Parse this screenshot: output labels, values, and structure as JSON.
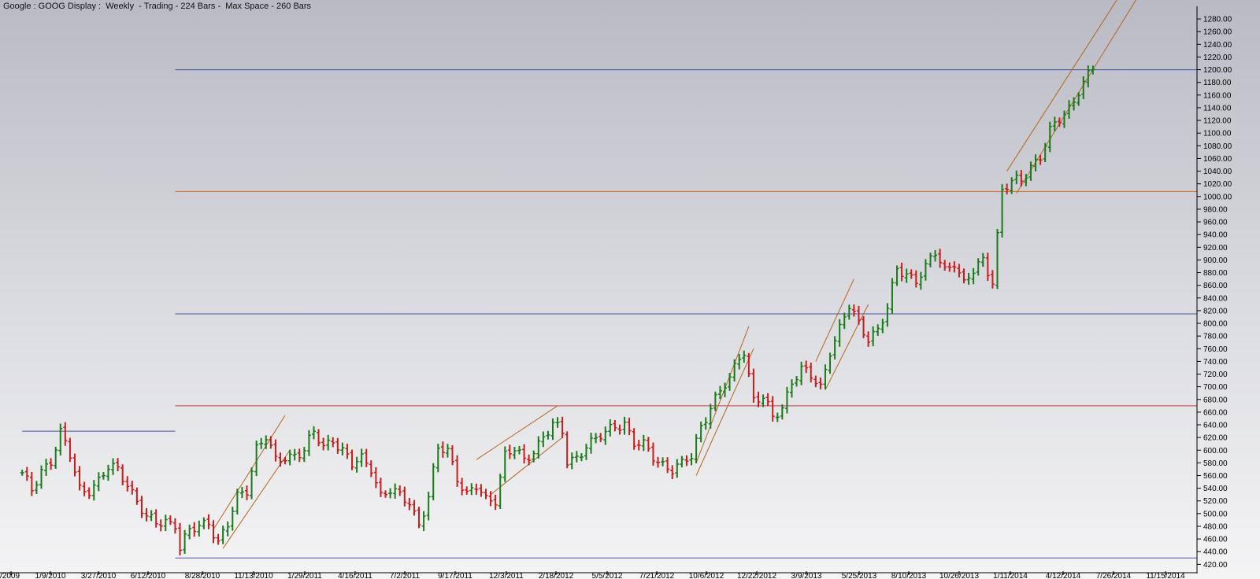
{
  "title": "Google : GOOG Display :  Weekly  - Trading - 224 Bars -  Max Space - 260 Bars",
  "colors": {
    "up": "#1a7a1a",
    "down": "#cc1a1a",
    "hline_blue": "#4a52a8",
    "hline_orange": "#d96a1e",
    "hline_red": "#c23c3c",
    "trend": "#b5651d",
    "axis": "#000000"
  },
  "chart_data": {
    "type": "ohlc",
    "interval": "weekly",
    "ylim": [
      413,
      1295
    ],
    "y_ticks": [
      "420.00",
      "440.00",
      "460.00",
      "480.00",
      "500.00",
      "520.00",
      "540.00",
      "560.00",
      "580.00",
      "600.00",
      "620.00",
      "640.00",
      "660.00",
      "680.00",
      "700.00",
      "720.00",
      "740.00",
      "760.00",
      "780.00",
      "800.00",
      "820.00",
      "840.00",
      "860.00",
      "880.00",
      "900.00",
      "920.00",
      "940.00",
      "960.00",
      "980.00",
      "1000.00",
      "1020.00",
      "1040.00",
      "1060.00",
      "1080.00",
      "1100.00",
      "1120.00",
      "1140.00",
      "1160.00",
      "1180.00",
      "1200.00",
      "1220.00",
      "1240.00",
      "1260.00",
      "1280.00"
    ],
    "x_ticks": [
      "/2009",
      "1/9/2010",
      "3/27/2010",
      "6/12/2010",
      "8/28/2010",
      "11/13/2010",
      "1/29/2011",
      "4/16/2011",
      "7/2/2011",
      "9/17/2011",
      "12/3/2011",
      "2/18/2012",
      "5/5/2012",
      "7/21/2012",
      "10/6/2012",
      "12/22/2012",
      "3/9/2013",
      "5/25/2013",
      "8/10/2013",
      "10/26/2013",
      "1/11/2014",
      "4/12/2014",
      "7/26/2014",
      "11/15/2014"
    ],
    "close_path": [
      [
        "2009-11-14",
        560
      ],
      [
        "2009-11-28",
        535
      ],
      [
        "2009-12-12",
        570
      ],
      [
        "2009-12-26",
        585
      ],
      [
        "2010-01-09",
        625
      ],
      [
        "2010-01-23",
        590
      ],
      [
        "2010-02-06",
        540
      ],
      [
        "2010-02-20",
        540
      ],
      [
        "2010-03-06",
        550
      ],
      [
        "2010-03-20",
        570
      ],
      [
        "2010-04-03",
        570
      ],
      [
        "2010-04-17",
        550
      ],
      [
        "2010-05-01",
        520
      ],
      [
        "2010-05-15",
        490
      ],
      [
        "2010-05-29",
        485
      ],
      [
        "2010-06-12",
        490
      ],
      [
        "2010-06-26",
        485
      ],
      [
        "2010-07-03",
        445
      ],
      [
        "2010-07-17",
        470
      ],
      [
        "2010-07-31",
        480
      ],
      [
        "2010-08-14",
        490
      ],
      [
        "2010-08-28",
        455
      ],
      [
        "2010-09-11",
        480
      ],
      [
        "2010-09-25",
        525
      ],
      [
        "2010-10-09",
        540
      ],
      [
        "2010-10-23",
        605
      ],
      [
        "2010-11-06",
        620
      ],
      [
        "2010-11-20",
        580
      ],
      [
        "2010-12-04",
        590
      ],
      [
        "2010-12-18",
        595
      ],
      [
        "2011-01-01",
        600
      ],
      [
        "2011-01-15",
        625
      ],
      [
        "2011-01-29",
        605
      ],
      [
        "2011-02-12",
        620
      ],
      [
        "2011-02-26",
        600
      ],
      [
        "2011-03-12",
        575
      ],
      [
        "2011-03-26",
        585
      ],
      [
        "2011-04-09",
        575
      ],
      [
        "2011-04-23",
        530
      ],
      [
        "2011-05-07",
        535
      ],
      [
        "2011-05-21",
        525
      ],
      [
        "2011-06-04",
        520
      ],
      [
        "2011-06-18",
        485
      ],
      [
        "2011-07-02",
        525
      ],
      [
        "2011-07-16",
        600
      ],
      [
        "2011-07-30",
        600
      ],
      [
        "2011-08-13",
        560
      ],
      [
        "2011-08-27",
        530
      ],
      [
        "2011-09-10",
        540
      ],
      [
        "2011-09-24",
        520
      ],
      [
        "2011-10-08",
        525
      ],
      [
        "2011-10-22",
        595
      ],
      [
        "2011-11-05",
        600
      ],
      [
        "2011-11-19",
        580
      ],
      [
        "2011-12-03",
        600
      ],
      [
        "2011-12-17",
        625
      ],
      [
        "2011-12-31",
        640
      ],
      [
        "2012-01-14",
        625
      ],
      [
        "2012-01-21",
        580
      ],
      [
        "2012-02-04",
        590
      ],
      [
        "2012-02-18",
        610
      ],
      [
        "2012-03-03",
        615
      ],
      [
        "2012-03-17",
        625
      ],
      [
        "2012-03-31",
        640
      ],
      [
        "2012-04-14",
        645
      ],
      [
        "2012-04-28",
        610
      ],
      [
        "2012-05-12",
        605
      ],
      [
        "2012-05-26",
        590
      ],
      [
        "2012-06-09",
        580
      ],
      [
        "2012-06-23",
        570
      ],
      [
        "2012-07-07",
        575
      ],
      [
        "2012-07-21",
        590
      ],
      [
        "2012-08-04",
        640
      ],
      [
        "2012-08-18",
        670
      ],
      [
        "2012-09-01",
        690
      ],
      [
        "2012-09-15",
        710
      ],
      [
        "2012-09-29",
        750
      ],
      [
        "2012-10-06",
        760
      ],
      [
        "2012-10-20",
        680
      ],
      [
        "2012-11-03",
        680
      ],
      [
        "2012-11-17",
        650
      ],
      [
        "2012-12-01",
        670
      ],
      [
        "2012-12-15",
        710
      ],
      [
        "2012-12-29",
        725
      ],
      [
        "2013-01-12",
        715
      ],
      [
        "2013-01-26",
        700
      ],
      [
        "2013-02-09",
        760
      ],
      [
        "2013-02-23",
        790
      ],
      [
        "2013-03-09",
        825
      ],
      [
        "2013-03-23",
        800
      ],
      [
        "2013-04-06",
        780
      ],
      [
        "2013-04-20",
        790
      ],
      [
        "2013-05-04",
        820
      ],
      [
        "2013-05-18",
        885
      ],
      [
        "2013-06-01",
        880
      ],
      [
        "2013-06-15",
        870
      ],
      [
        "2013-06-29",
        885
      ],
      [
        "2013-07-13",
        910
      ],
      [
        "2013-07-27",
        885
      ],
      [
        "2013-08-10",
        900
      ],
      [
        "2013-08-24",
        860
      ],
      [
        "2013-09-07",
        880
      ],
      [
        "2013-09-21",
        900
      ],
      [
        "2013-10-05",
        870
      ],
      [
        "2013-10-19",
        1010
      ],
      [
        "2013-11-02",
        1020
      ],
      [
        "2013-11-16",
        1025
      ],
      [
        "2013-11-30",
        1050
      ],
      [
        "2013-12-14",
        1065
      ],
      [
        "2013-12-28",
        1100
      ],
      [
        "2014-01-11",
        1120
      ],
      [
        "2014-01-25",
        1140
      ],
      [
        "2014-02-08",
        1170
      ],
      [
        "2014-02-22",
        1190
      ],
      [
        "2014-03-01",
        1200
      ]
    ],
    "horizontal_lines": [
      {
        "price": 430,
        "from": "2010-06-26",
        "color_key": "hline_blue"
      },
      {
        "price": 630,
        "from": "2009-11-14",
        "to": "2010-06-26",
        "color_key": "hline_blue"
      },
      {
        "price": 670,
        "from": "2010-06-26",
        "color_key": "hline_red"
      },
      {
        "price": 815,
        "from": "2010-06-26",
        "color_key": "hline_blue"
      },
      {
        "price": 1008,
        "from": "2010-06-26",
        "color_key": "hline_orange"
      },
      {
        "price": 1200,
        "from": "2010-06-26",
        "color_key": "hline_blue"
      }
    ],
    "trend_lines": [
      [
        [
          "2010-08-21",
          475
        ],
        [
          "2010-12-04",
          655
        ]
      ],
      [
        [
          "2010-09-04",
          445
        ],
        [
          "2010-12-11",
          600
        ]
      ],
      [
        [
          "2011-09-10",
          585
        ],
        [
          "2012-01-07",
          670
        ]
      ],
      [
        [
          "2011-10-01",
          530
        ],
        [
          "2012-01-14",
          620
        ]
      ],
      [
        [
          "2012-07-28",
          580
        ],
        [
          "2012-10-13",
          795
        ]
      ],
      [
        [
          "2012-07-28",
          560
        ],
        [
          "2012-10-20",
          760
        ]
      ],
      [
        [
          "2013-01-19",
          740
        ],
        [
          "2013-03-16",
          870
        ]
      ],
      [
        [
          "2013-02-02",
          695
        ],
        [
          "2013-04-06",
          830
        ]
      ],
      [
        [
          "2013-10-26",
          1040
        ],
        [
          "2014-04-05",
          1310
        ]
      ],
      [
        [
          "2013-11-09",
          1005
        ],
        [
          "2014-05-03",
          1310
        ]
      ]
    ]
  }
}
